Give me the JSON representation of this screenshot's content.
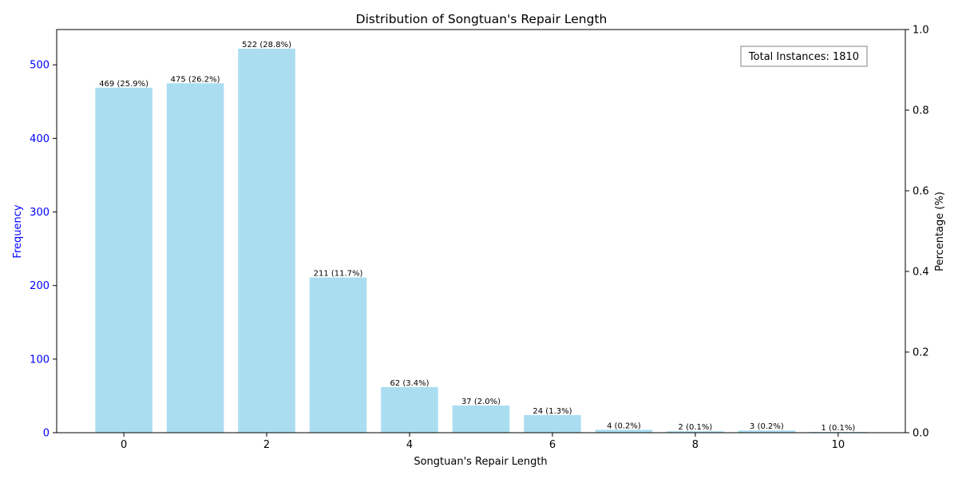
{
  "chart_data": {
    "type": "bar",
    "title": "Distribution of Songtuan's Repair Length",
    "xlabel": "Songtuan's Repair Length",
    "ylabel": "Frequency",
    "ylabel_right": "Percentage (%)",
    "x": [
      0,
      1,
      2,
      3,
      4,
      5,
      6,
      7,
      8,
      9,
      10
    ],
    "values": [
      469,
      475,
      522,
      211,
      62,
      37,
      24,
      4,
      2,
      3,
      1
    ],
    "data_labels": [
      "469 (25.9%)",
      "475 (26.2%)",
      "522 (28.8%)",
      "211 (11.7%)",
      "62 (3.4%)",
      "37 (2.0%)",
      "24 (1.3%)",
      "4 (0.2%)",
      "2 (0.1%)",
      "3 (0.2%)",
      "1 (0.1%)"
    ],
    "xlim": [
      -0.94,
      10.94
    ],
    "ylim": [
      0,
      548
    ],
    "ylim_right": [
      0,
      1
    ],
    "x_ticks": [
      0,
      2,
      4,
      6,
      8,
      10
    ],
    "x_tick_labels": [
      "0",
      "2",
      "4",
      "6",
      "8",
      "10"
    ],
    "y_ticks": [
      0,
      100,
      200,
      300,
      400,
      500
    ],
    "y_tick_labels": [
      "0",
      "100",
      "200",
      "300",
      "400",
      "500"
    ],
    "y_right_ticks": [
      0,
      0.2,
      0.4,
      0.6,
      0.8,
      1.0
    ],
    "y_right_tick_labels": [
      "0.0",
      "0.2",
      "0.4",
      "0.6",
      "0.8",
      "1.0"
    ],
    "annotation": "Total Instances: 1810",
    "grid": false,
    "colors": {
      "bar": "#87ceeb",
      "left_axis": "#0000ff"
    }
  }
}
